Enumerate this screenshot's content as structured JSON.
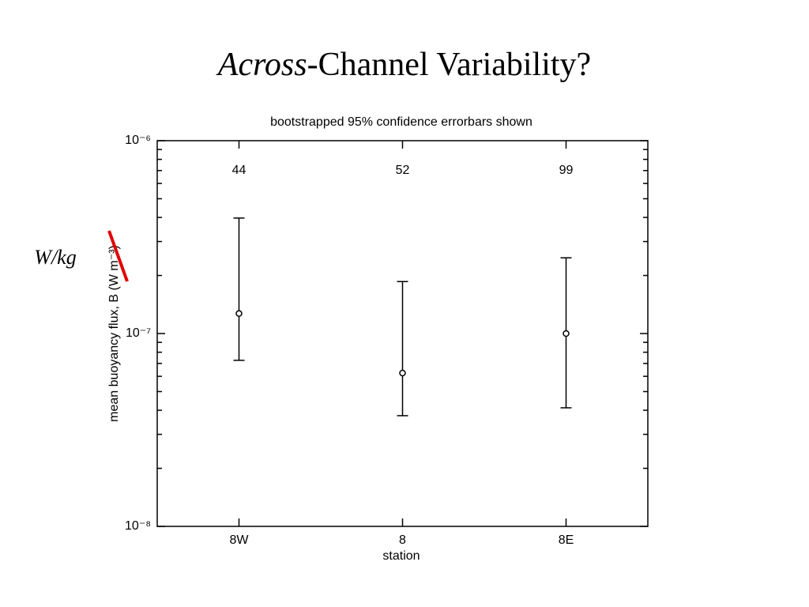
{
  "slide": {
    "title_italic": "Across",
    "title_rest": "-Channel Variability?",
    "annotation": "W/kg"
  },
  "chart_data": {
    "type": "errorbar",
    "title": "bootstrapped 95% confidence errorbars shown",
    "x_label": "station",
    "y_label": "mean buoyancy flux, B (W m⁻³)",
    "categories": [
      "8W",
      "8",
      "8E"
    ],
    "values": [
      1.27e-07,
      6.24e-08,
      1e-07
    ],
    "lower": [
      7.26e-08,
      3.75e-08,
      4.12e-08
    ],
    "upper": [
      3.97e-07,
      1.86e-07,
      2.47e-07
    ],
    "counts": [
      44,
      52,
      99
    ],
    "color": "#000000",
    "ylim": [
      1e-08,
      1e-06
    ],
    "log_scale": true,
    "yticks": [
      {
        "value": 1e-08,
        "label": "10⁻⁸"
      },
      {
        "value": 1e-07,
        "label": "10⁻⁷"
      },
      {
        "value": 1e-06,
        "label": "10⁻⁶"
      }
    ],
    "minor_yticks": [
      2e-08,
      3e-08,
      4e-08,
      5e-08,
      6e-08,
      7e-08,
      8e-08,
      9e-08,
      2e-07,
      3e-07,
      4e-07,
      5e-07,
      6e-07,
      7e-07,
      8e-07,
      9e-07
    ],
    "grid": false
  }
}
